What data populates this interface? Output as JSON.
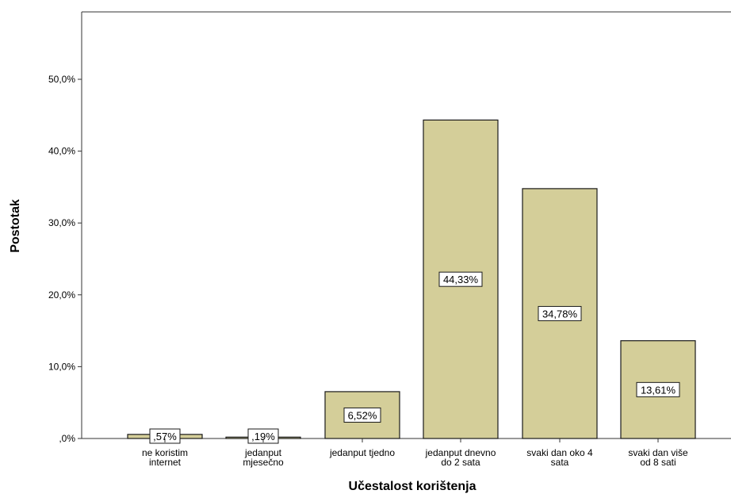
{
  "chart_data": {
    "type": "bar",
    "title": "",
    "xlabel": "Učestalost korištenja",
    "ylabel": "Postotak",
    "ylim": [
      0,
      50
    ],
    "yticks": [
      {
        "value": 0,
        "label": ",0%"
      },
      {
        "value": 10,
        "label": "10,0%"
      },
      {
        "value": 20,
        "label": "20,0%"
      },
      {
        "value": 30,
        "label": "30,0%"
      },
      {
        "value": 40,
        "label": "40,0%"
      },
      {
        "value": 50,
        "label": "50,0%"
      }
    ],
    "categories": [
      [
        "ne koristim",
        "internet"
      ],
      [
        "jedanput",
        "mjesečno"
      ],
      [
        "jedanput tjedno"
      ],
      [
        "jedanput dnevno",
        "do 2 sata"
      ],
      [
        "svaki dan oko 4",
        "sata"
      ],
      [
        "svaki dan više",
        "od 8 sati"
      ]
    ],
    "values": [
      0.57,
      0.19,
      6.52,
      44.33,
      34.78,
      13.61
    ],
    "data_labels": [
      ",57%",
      ",19%",
      "6,52%",
      "44,33%",
      "34,78%",
      "13,61%"
    ],
    "grid": false,
    "colors": {
      "bar_fill": "#d4ce99",
      "bar_stroke": "#1a1a1a",
      "axis": "#333333"
    }
  }
}
